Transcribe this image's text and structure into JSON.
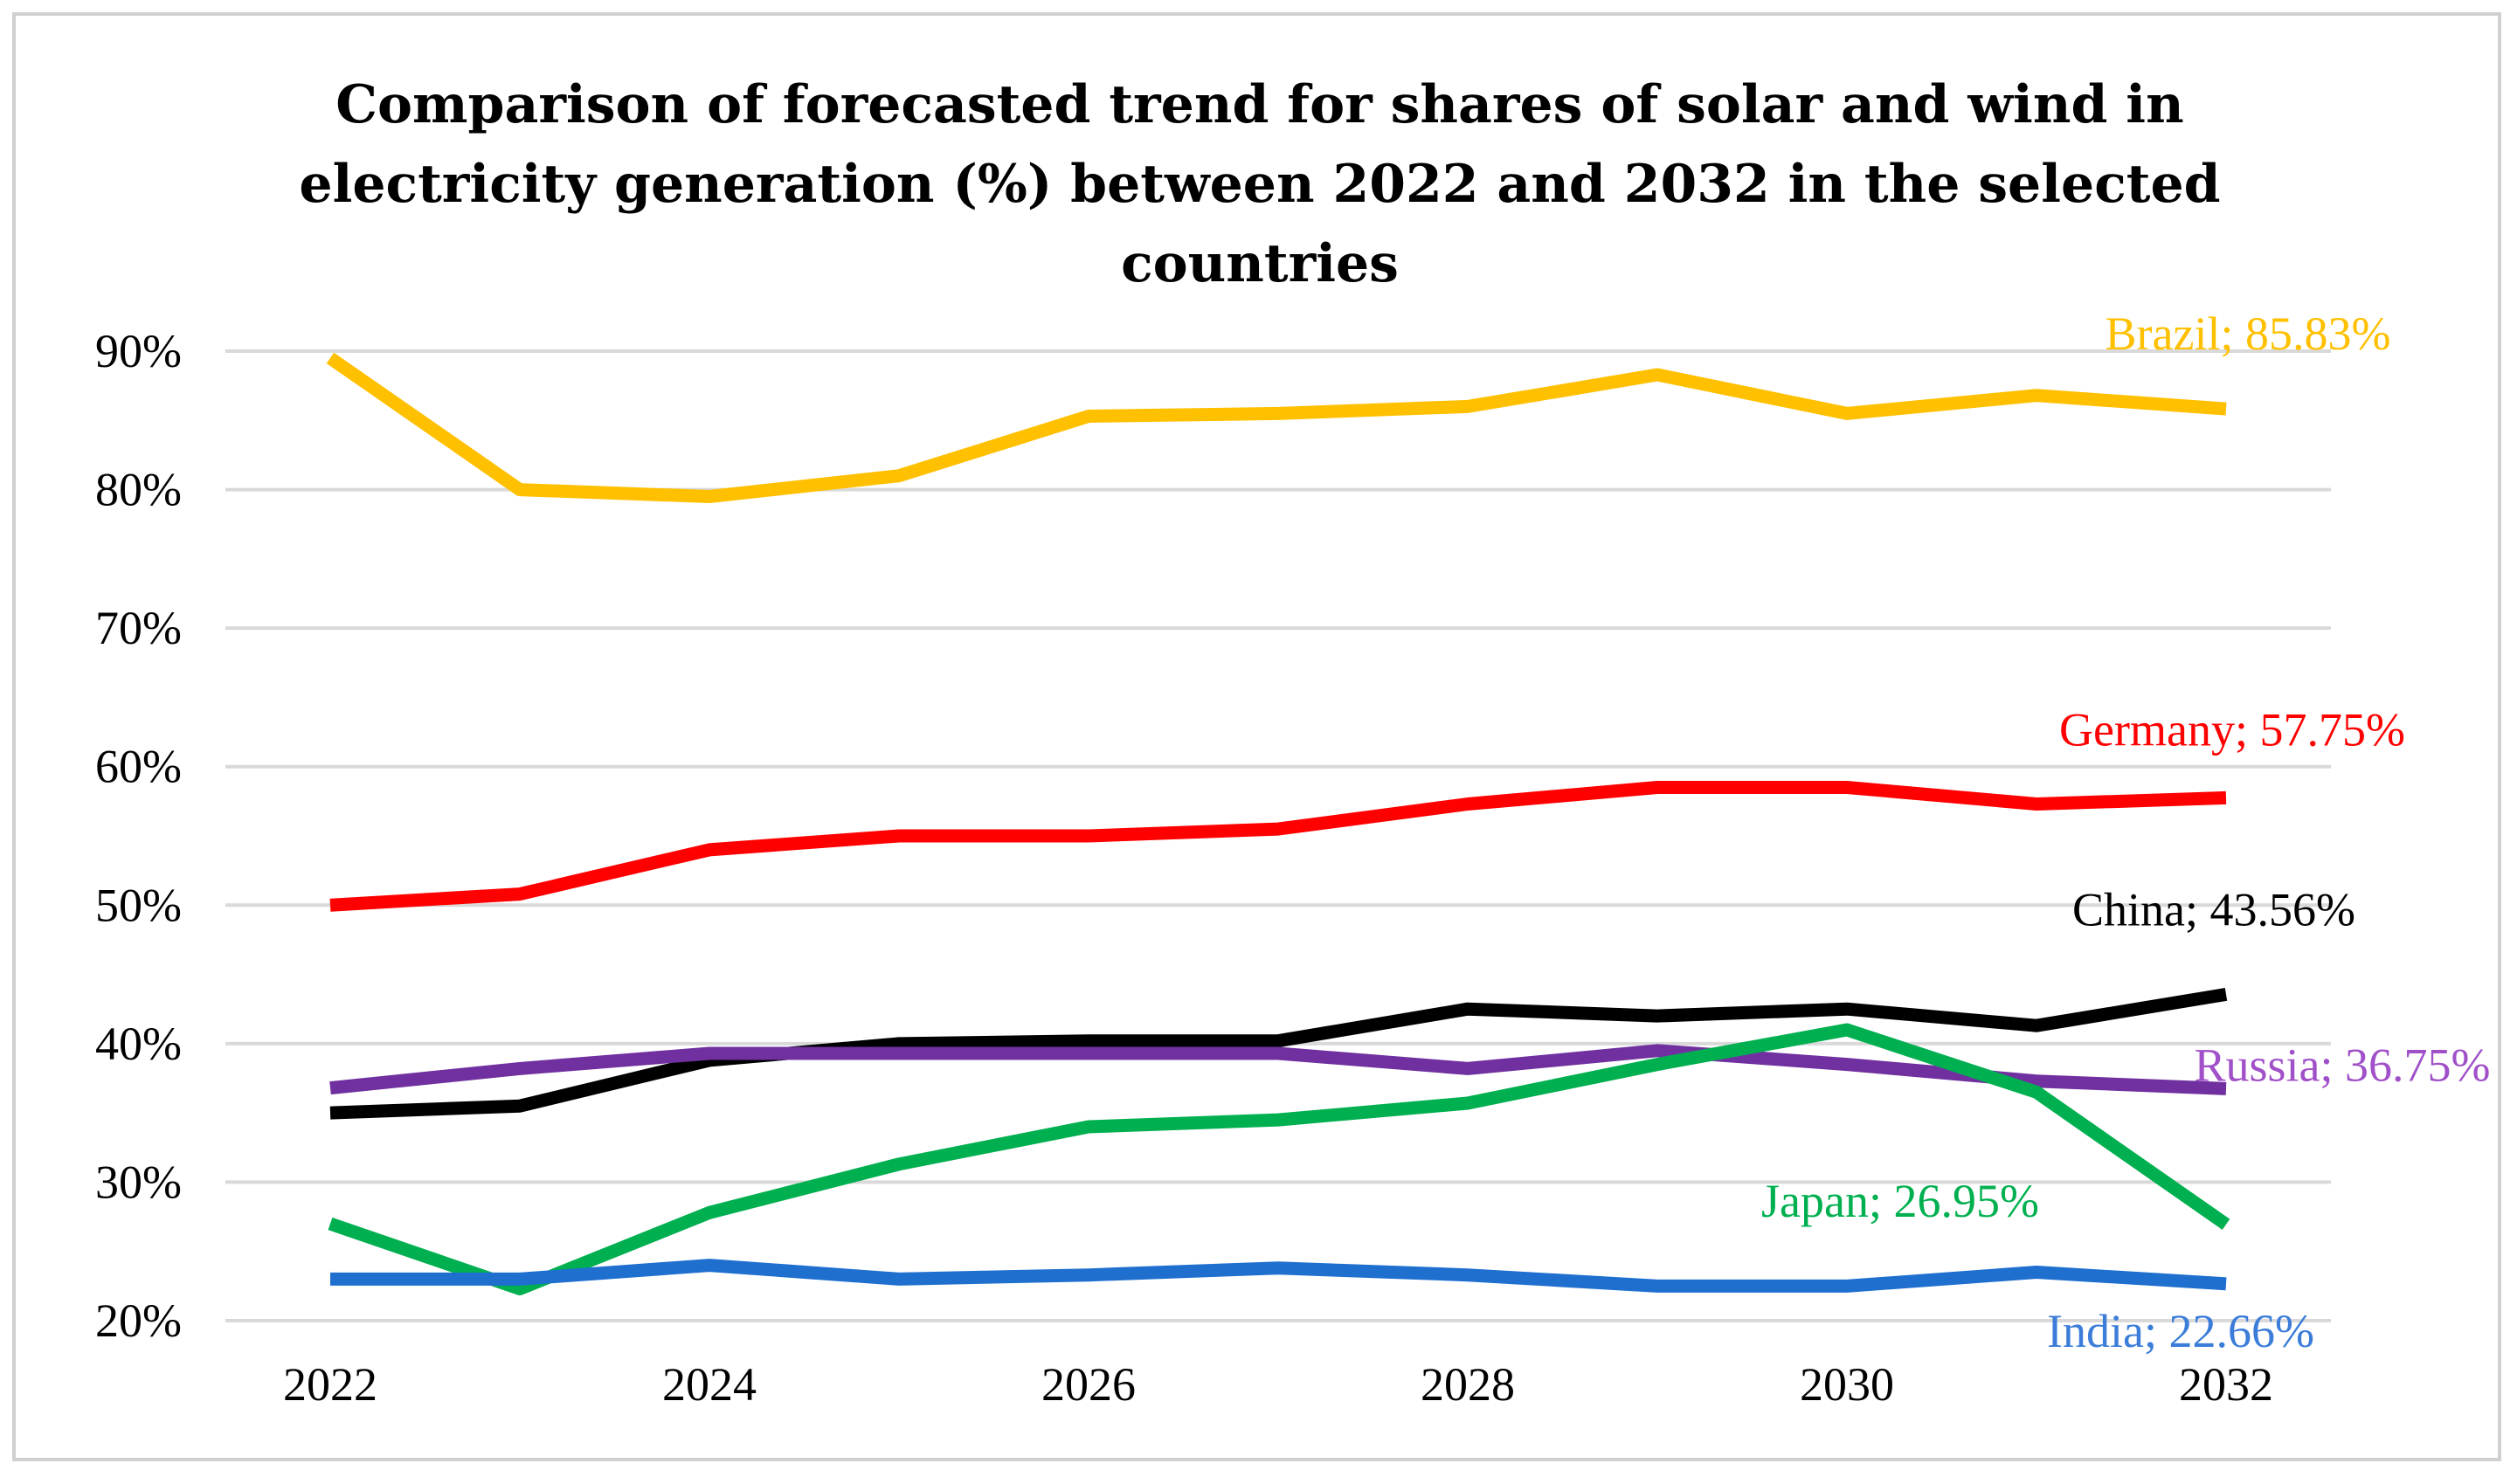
{
  "chart_data": {
    "type": "line",
    "title_lines": [
      "Comparison  of forecasted trend  for shares of solar and  wind  in",
      "electricity generation (%)  between 2022 and  2032 in  the selected",
      "countries"
    ],
    "xlabel": "",
    "ylabel": "",
    "x": [
      2022,
      2023,
      2024,
      2025,
      2026,
      2027,
      2028,
      2029,
      2030,
      2031,
      2032
    ],
    "x_tick_values": [
      2022,
      2024,
      2026,
      2028,
      2030,
      2032
    ],
    "x_tick_labels": [
      "2022",
      "2024",
      "2026",
      "2028",
      "2030",
      "2032"
    ],
    "ylim": [
      20,
      90
    ],
    "y_tick_values": [
      20,
      30,
      40,
      50,
      60,
      70,
      80,
      90
    ],
    "y_tick_labels": [
      "20%",
      "30%",
      "40%",
      "50%",
      "60%",
      "70%",
      "80%",
      "90%"
    ],
    "grid": true,
    "legend": "none",
    "series": [
      {
        "name": "Brazil",
        "color": "#FFC000",
        "values": [
          89.5,
          80.0,
          79.5,
          81.0,
          85.3,
          85.5,
          86.0,
          88.3,
          85.5,
          86.8,
          85.83
        ],
        "end_label": "Brazil; 85.83%"
      },
      {
        "name": "Germany",
        "color": "#FF0000",
        "values": [
          50.0,
          50.8,
          54.0,
          55.0,
          55.0,
          55.5,
          57.3,
          58.5,
          58.5,
          57.3,
          57.75
        ],
        "end_label": "Germany; 57.75%"
      },
      {
        "name": "China",
        "color": "#000000",
        "values": [
          35.0,
          35.5,
          38.8,
          40.0,
          40.2,
          40.2,
          42.5,
          42.0,
          42.5,
          41.3,
          43.56
        ],
        "end_label": "China; 43.56%"
      },
      {
        "name": "Russia",
        "color": "#7030A0",
        "values": [
          36.8,
          38.2,
          39.3,
          39.3,
          39.3,
          39.3,
          38.2,
          39.5,
          38.5,
          37.3,
          36.75
        ],
        "end_label": "Russia; 36.75%"
      },
      {
        "name": "Japan",
        "color": "#00B050",
        "values": [
          27.0,
          22.3,
          27.8,
          31.3,
          34.0,
          34.5,
          35.7,
          38.5,
          41.0,
          36.5,
          26.95
        ],
        "end_label": "Japan; 26.95%"
      },
      {
        "name": "India",
        "color": "#1F6FCF",
        "values": [
          23.0,
          23.0,
          24.0,
          23.0,
          23.3,
          23.8,
          23.3,
          22.5,
          22.5,
          23.5,
          22.66
        ],
        "end_label": "India; 22.66%"
      }
    ]
  },
  "end_label_colors": {
    "Brazil": "#FFC000",
    "Germany": "#FF0000",
    "China": "#000000",
    "Russia": "#A050C8",
    "Japan": "#00B050",
    "India": "#3C7DD9"
  }
}
